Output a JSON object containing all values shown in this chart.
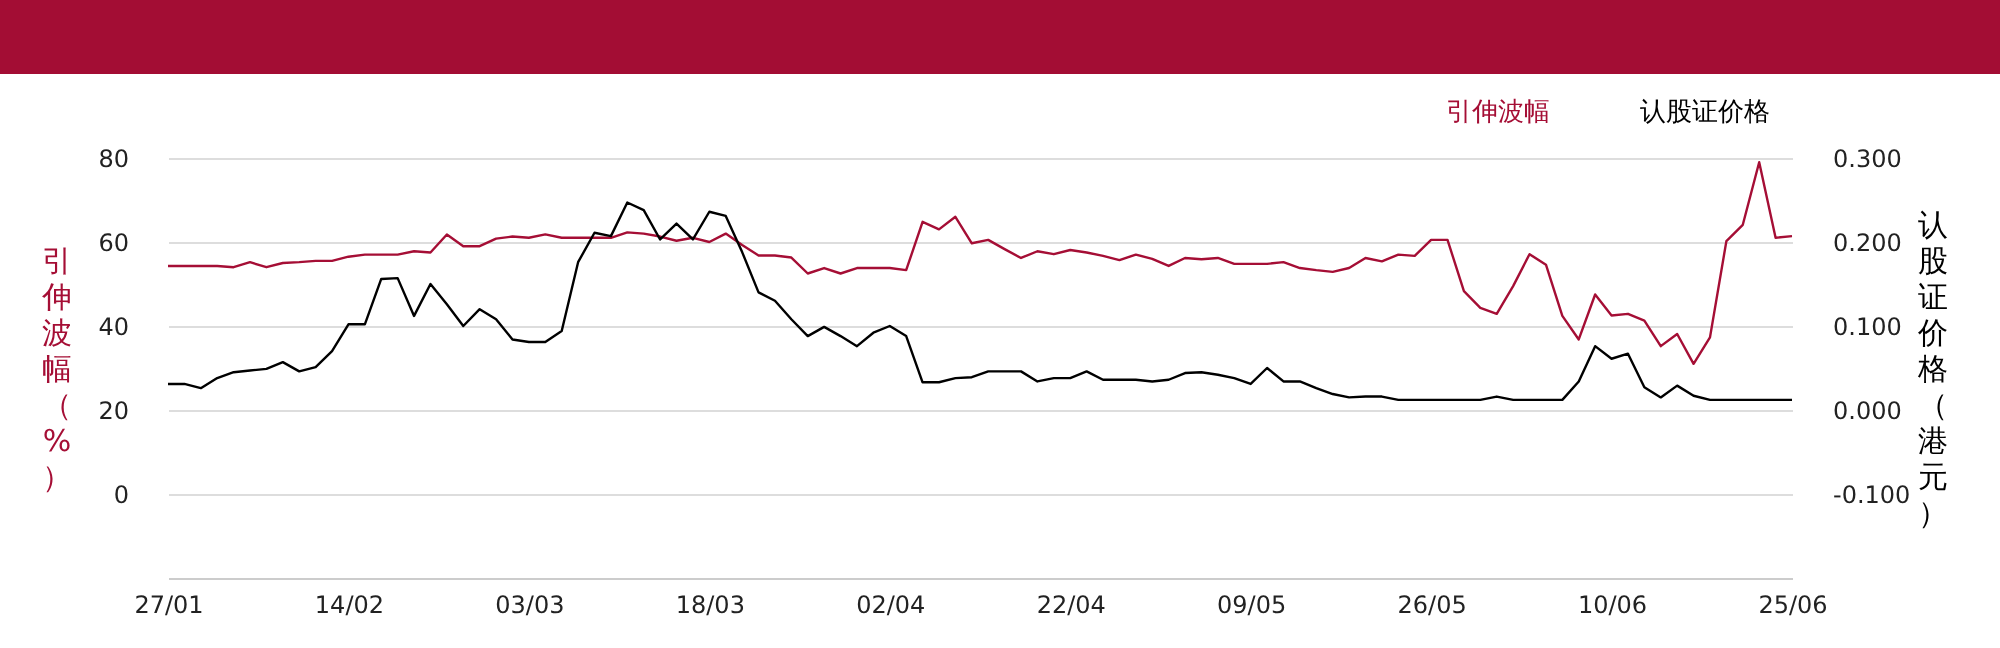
{
  "chart_data": {
    "type": "line",
    "categories": [
      "27/01",
      null,
      null,
      null,
      null,
      null,
      null,
      null,
      null,
      null,
      null,
      "14/02",
      null,
      null,
      null,
      null,
      null,
      null,
      null,
      null,
      null,
      null,
      "03/03",
      null,
      null,
      null,
      null,
      null,
      null,
      null,
      null,
      null,
      null,
      "18/03",
      null,
      null,
      null,
      null,
      null,
      null,
      null,
      null,
      null,
      null,
      "02/04",
      null,
      null,
      null,
      null,
      null,
      null,
      null,
      null,
      null,
      null,
      "22/04",
      null,
      null,
      null,
      null,
      null,
      null,
      null,
      null,
      null,
      null,
      "09/05",
      null,
      null,
      null,
      null,
      null,
      null,
      null,
      null,
      null,
      null,
      "26/05",
      null,
      null,
      null,
      null,
      null,
      null,
      null,
      null,
      null,
      null,
      "10/06",
      null,
      null,
      null,
      null,
      null,
      null,
      null,
      null,
      null,
      null,
      "25/06"
    ],
    "series": [
      {
        "name": "引伸波幅",
        "color": "#a50e35",
        "values": [
          54.3,
          54.3,
          54.3,
          54.3,
          54,
          55.2,
          54,
          55,
          55.2,
          55.5,
          55.5,
          56.5,
          57,
          57,
          57,
          57.8,
          57.5,
          61.8,
          59,
          59,
          60.8,
          61.3,
          61,
          61.8,
          61,
          61,
          61,
          61,
          62.3,
          62,
          61.3,
          60.3,
          61,
          60,
          62,
          59.3,
          56.8,
          56.8,
          56.3,
          52.5,
          53.8,
          52.5,
          53.8,
          53.8,
          53.8,
          53.3,
          64.8,
          63,
          66,
          59.7,
          60.5,
          58.3,
          56.2,
          57.8,
          57.1,
          58.1,
          57.5,
          56.7,
          55.7,
          57,
          56,
          54.3,
          56.2,
          55.9,
          56.2,
          54.8,
          54.8,
          54.8,
          55.2,
          53.8,
          53.3,
          52.9,
          53.8,
          56.2,
          55.4,
          57,
          56.7,
          60.5,
          60.5,
          48.3,
          44.3,
          42.9,
          49.5,
          57.1,
          54.6,
          42.4,
          36.8,
          47.5,
          42.5,
          42.9,
          41.3,
          35.2,
          38.1,
          31,
          37.3,
          60.2,
          64.1,
          79,
          61,
          61.4
        ]
      },
      {
        "name": "认股证价格",
        "color": "#000000",
        "axis": "y2",
        "values": [
          0.031,
          0.031,
          0.026,
          0.038,
          0.045,
          0.047,
          0.049,
          0.057,
          0.046,
          0.051,
          0.07,
          0.102,
          0.102,
          0.156,
          0.157,
          0.112,
          0.15,
          0.126,
          0.1,
          0.12,
          0.108,
          0.084,
          0.081,
          0.081,
          0.094,
          0.176,
          0.211,
          0.207,
          0.247,
          0.238,
          0.203,
          0.222,
          0.203,
          0.236,
          0.231,
          0.188,
          0.14,
          0.13,
          0.108,
          0.088,
          0.099,
          0.088,
          0.076,
          0.092,
          0.1,
          0.088,
          0.033,
          0.033,
          0.038,
          0.039,
          0.046,
          0.046,
          0.046,
          0.034,
          0.038,
          0.038,
          0.046,
          0.036,
          0.036,
          0.036,
          0.034,
          0.036,
          0.044,
          0.045,
          0.042,
          0.038,
          0.031,
          0.05,
          0.034,
          0.034,
          0.026,
          0.019,
          0.015,
          0.016,
          0.016,
          0.012,
          0.012,
          0.012,
          0.012,
          0.012,
          0.012,
          0.016,
          0.012,
          0.012,
          0.012,
          0.012,
          0.034,
          0.076,
          0.061,
          0.067,
          0.027,
          0.015,
          0.029,
          0.017,
          0.012,
          0.012,
          0.012,
          0.012,
          0.012,
          0.012
        ]
      }
    ],
    "ylabel": "引伸波幅（%）",
    "y2label": "认股证价格（港元）",
    "ylim": [
      -20,
      80
    ],
    "yticks": [
      0,
      20,
      40,
      60,
      80
    ],
    "y2lim": [
      -0.2,
      0.3
    ],
    "y2ticks": [
      {
        "value": -0.1,
        "label": "-0.100"
      },
      {
        "value": 0,
        "label": "0.000"
      },
      {
        "value": 0.1,
        "label": "0.100"
      },
      {
        "value": 0.2,
        "label": "0.200"
      },
      {
        "value": 0.3,
        "label": "0.300"
      }
    ],
    "grid": "y",
    "legend": "top right",
    "marker": "none",
    "line_style": "solid"
  }
}
